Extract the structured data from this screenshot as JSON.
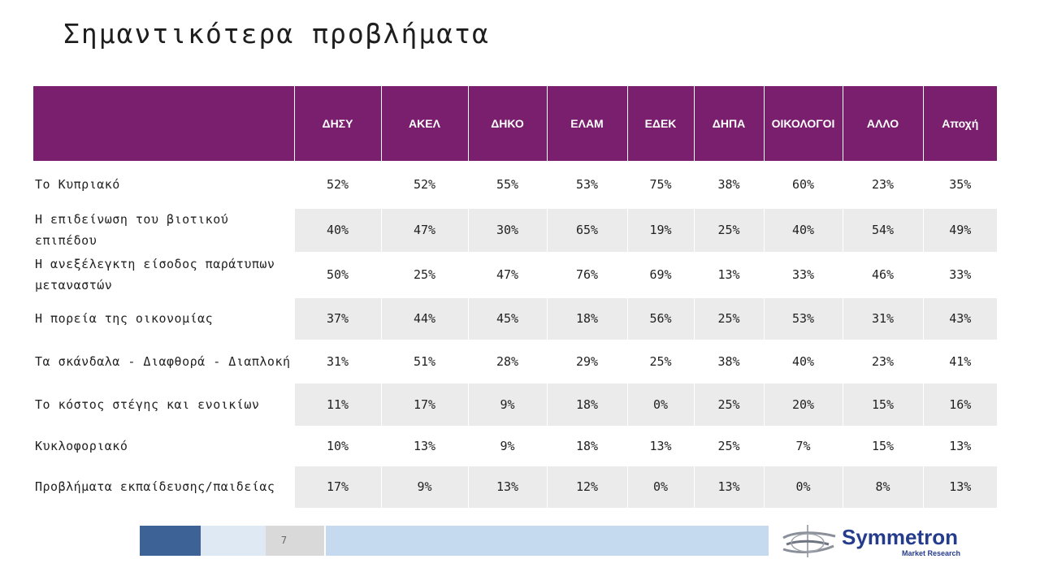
{
  "title": "Σημαντικότερα προβλήματα",
  "table": {
    "corner": "",
    "columns": [
      "ΔΗΣΥ",
      "ΑΚΕΛ",
      "ΔΗΚΟ",
      "ΕΛΑΜ",
      "ΕΔΕΚ",
      "ΔΗΠΑ",
      "ΟΙΚΟΛΟΓΟΙ",
      "ΑΛΛΟ",
      "Αποχή"
    ],
    "rows": [
      {
        "label": "Το Κυπριακό",
        "values": [
          "52%",
          "52%",
          "55%",
          "53%",
          "75%",
          "38%",
          "60%",
          "23%",
          "35%"
        ]
      },
      {
        "label": "Η επιδείνωση του βιοτικού επιπέδου",
        "values": [
          "40%",
          "47%",
          "30%",
          "65%",
          "19%",
          "25%",
          "40%",
          "54%",
          "49%"
        ]
      },
      {
        "label": "Η ανεξέλεγκτη είσοδος παράτυπων μεταναστών",
        "values": [
          "50%",
          "25%",
          "47%",
          "76%",
          "69%",
          "13%",
          "33%",
          "46%",
          "33%"
        ]
      },
      {
        "label": "Η πορεία της οικονομίας",
        "values": [
          "37%",
          "44%",
          "45%",
          "18%",
          "56%",
          "25%",
          "53%",
          "31%",
          "43%"
        ]
      },
      {
        "label": "Τα σκάνδαλα - Διαφθορά - Διαπλοκή",
        "values": [
          "31%",
          "51%",
          "28%",
          "29%",
          "25%",
          "38%",
          "40%",
          "23%",
          "41%"
        ]
      },
      {
        "label": "Το κόστος στέγης και ενοικίων",
        "values": [
          "11%",
          "17%",
          "9%",
          "18%",
          "0%",
          "25%",
          "20%",
          "15%",
          "16%"
        ]
      },
      {
        "label": "Κυκλοφοριακό",
        "values": [
          "10%",
          "13%",
          "9%",
          "18%",
          "13%",
          "25%",
          "7%",
          "15%",
          "13%"
        ]
      },
      {
        "label": "Προβλήματα εκπαίδευσης/παιδείας",
        "values": [
          "17%",
          "9%",
          "13%",
          "12%",
          "0%",
          "13%",
          "0%",
          "8%",
          "13%"
        ]
      }
    ]
  },
  "footer": {
    "page_number": "7",
    "logo_name": "Symmetron",
    "logo_tagline": "Market Research"
  },
  "colors": {
    "header_bg": "#7a1f6e",
    "row_alt_bg": "#ebebeb",
    "logo_blue": "#253c8c"
  }
}
